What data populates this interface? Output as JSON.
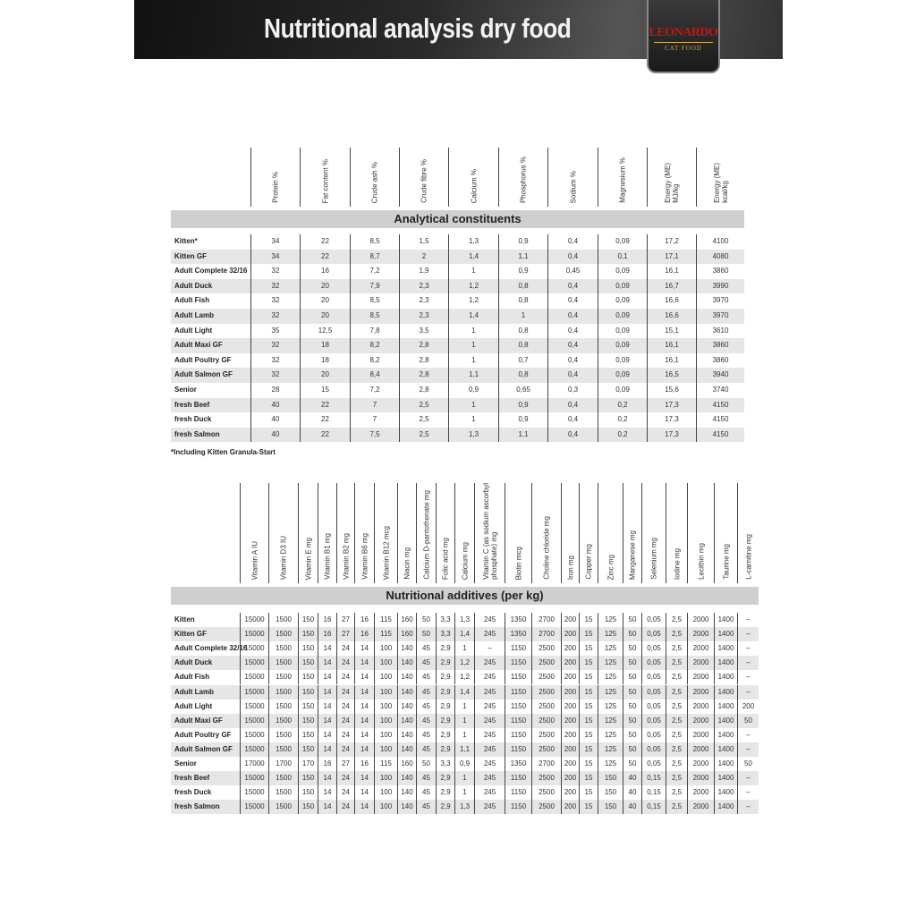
{
  "header": {
    "title": "Nutritional analysis dry food",
    "logo": {
      "brand": "LEONARDO",
      "sub": "CAT FOOD"
    }
  },
  "analytical": {
    "section_title": "Analytical constituents",
    "columns": [
      "Protein %",
      "Fat content %",
      "Crude ash %",
      "Crude fibre %",
      "Calcium %",
      "Phosphorus %",
      "Sodium %",
      "Magnesium %",
      "Energy (ME)\nMJ/kg",
      "Energy (ME)\nkcal/kg"
    ],
    "rows": [
      {
        "name": "Kitten*",
        "values": [
          "34",
          "22",
          "8,5",
          "1,5",
          "1,3",
          "0,9",
          "0,4",
          "0,09",
          "17,2",
          "4100"
        ]
      },
      {
        "name": "Kitten GF",
        "values": [
          "34",
          "22",
          "8,7",
          "2",
          "1,4",
          "1,1",
          "0,4",
          "0,1",
          "17,1",
          "4080"
        ]
      },
      {
        "name": "Adult Complete 32/16",
        "values": [
          "32",
          "16",
          "7,2",
          "1,9",
          "1",
          "0,9",
          "0,45",
          "0,09",
          "16,1",
          "3860"
        ]
      },
      {
        "name": "Adult Duck",
        "values": [
          "32",
          "20",
          "7,9",
          "2,3",
          "1,2",
          "0,8",
          "0,4",
          "0,09",
          "16,7",
          "3990"
        ]
      },
      {
        "name": "Adult Fish",
        "values": [
          "32",
          "20",
          "8,5",
          "2,3",
          "1,2",
          "0,8",
          "0,4",
          "0,09",
          "16,6",
          "3970"
        ]
      },
      {
        "name": "Adult Lamb",
        "values": [
          "32",
          "20",
          "8,5",
          "2,3",
          "1,4",
          "1",
          "0,4",
          "0,09",
          "16,6",
          "3970"
        ]
      },
      {
        "name": "Adult Light",
        "values": [
          "35",
          "12,5",
          "7,8",
          "3,5",
          "1",
          "0,8",
          "0,4",
          "0,09",
          "15,1",
          "3610"
        ]
      },
      {
        "name": "Adult Maxi GF",
        "values": [
          "32",
          "18",
          "8,2",
          "2,8",
          "1",
          "0,8",
          "0,4",
          "0,09",
          "16,1",
          "3860"
        ]
      },
      {
        "name": "Adult Poultry GF",
        "values": [
          "32",
          "18",
          "8,2",
          "2,8",
          "1",
          "0,7",
          "0,4",
          "0,09",
          "16,1",
          "3860"
        ]
      },
      {
        "name": "Adult Salmon GF",
        "values": [
          "32",
          "20",
          "8,4",
          "2,8",
          "1,1",
          "0,8",
          "0,4",
          "0,09",
          "16,5",
          "3940"
        ]
      },
      {
        "name": "Senior",
        "values": [
          "28",
          "15",
          "7,2",
          "2,8",
          "0,9",
          "0,65",
          "0,3",
          "0,09",
          "15,6",
          "3740"
        ]
      },
      {
        "name": "fresh Beef",
        "values": [
          "40",
          "22",
          "7",
          "2,5",
          "1",
          "0,9",
          "0,4",
          "0,2",
          "17,3",
          "4150"
        ]
      },
      {
        "name": "fresh Duck",
        "values": [
          "40",
          "22",
          "7",
          "2,5",
          "1",
          "0,9",
          "0,4",
          "0,2",
          "17,3",
          "4150"
        ]
      },
      {
        "name": "fresh Salmon",
        "values": [
          "40",
          "22",
          "7,5",
          "2,5",
          "1,3",
          "1,1",
          "0,4",
          "0,2",
          "17,3",
          "4150"
        ]
      }
    ],
    "footnote": "*Including Kitten Granula-Start"
  },
  "additives": {
    "section_title": "Nutritional additives (per kg)",
    "columns": [
      "Vitamin A IU",
      "Vitamin D3 IU",
      "Vitamin E mg",
      "Vitamin B1 mg",
      "Vitamin B2 mg",
      "Vitamin B6 mg",
      "Vitamin B12 mcg",
      "Niacin mg",
      "Calcium D-pantothenate mg",
      "Folic acid mg",
      "Calcium mg",
      "Vitamin C (as sodium ascorbyl\nphosphate) mg",
      "Biotin mcg",
      "Choline chloride mg",
      "Iron mg",
      "Copper mg",
      "Zinc mg",
      "Manganese mg",
      "Selenium mg",
      "Iodine mg",
      "Lecithin mg",
      "Taurine mg",
      "L-carnitine mg"
    ],
    "rows": [
      {
        "name": "Kitten",
        "values": [
          "15000",
          "1500",
          "150",
          "16",
          "27",
          "16",
          "115",
          "160",
          "50",
          "3,3",
          "1,3",
          "245",
          "1350",
          "2700",
          "200",
          "15",
          "125",
          "50",
          "0,05",
          "2,5",
          "2000",
          "1400",
          "–"
        ]
      },
      {
        "name": "Kitten GF",
        "values": [
          "15000",
          "1500",
          "150",
          "16",
          "27",
          "16",
          "115",
          "160",
          "50",
          "3,3",
          "1,4",
          "245",
          "1350",
          "2700",
          "200",
          "15",
          "125",
          "50",
          "0,05",
          "2,5",
          "2000",
          "1400",
          "–"
        ]
      },
      {
        "name": "Adult Complete 32/16",
        "values": [
          "15000",
          "1500",
          "150",
          "14",
          "24",
          "14",
          "100",
          "140",
          "45",
          "2,9",
          "1",
          "–",
          "1150",
          "2500",
          "200",
          "15",
          "125",
          "50",
          "0,05",
          "2,5",
          "2000",
          "1400",
          "–"
        ]
      },
      {
        "name": "Adult Duck",
        "values": [
          "15000",
          "1500",
          "150",
          "14",
          "24",
          "14",
          "100",
          "140",
          "45",
          "2,9",
          "1,2",
          "245",
          "1150",
          "2500",
          "200",
          "15",
          "125",
          "50",
          "0,05",
          "2,5",
          "2000",
          "1400",
          "–"
        ]
      },
      {
        "name": "Adult Fish",
        "values": [
          "15000",
          "1500",
          "150",
          "14",
          "24",
          "14",
          "100",
          "140",
          "45",
          "2,9",
          "1,2",
          "245",
          "1150",
          "2500",
          "200",
          "15",
          "125",
          "50",
          "0,05",
          "2,5",
          "2000",
          "1400",
          "–"
        ]
      },
      {
        "name": "Adult Lamb",
        "values": [
          "15000",
          "1500",
          "150",
          "14",
          "24",
          "14",
          "100",
          "140",
          "45",
          "2,9",
          "1,4",
          "245",
          "1150",
          "2500",
          "200",
          "15",
          "125",
          "50",
          "0,05",
          "2,5",
          "2000",
          "1400",
          "–"
        ]
      },
      {
        "name": "Adult Light",
        "values": [
          "15000",
          "1500",
          "150",
          "14",
          "24",
          "14",
          "100",
          "140",
          "45",
          "2,9",
          "1",
          "245",
          "1150",
          "2500",
          "200",
          "15",
          "125",
          "50",
          "0,05",
          "2,5",
          "2000",
          "1400",
          "200"
        ]
      },
      {
        "name": "Adult Maxi GF",
        "values": [
          "15000",
          "1500",
          "150",
          "14",
          "24",
          "14",
          "100",
          "140",
          "45",
          "2,9",
          "1",
          "245",
          "1150",
          "2500",
          "200",
          "15",
          "125",
          "50",
          "0,05",
          "2,5",
          "2000",
          "1400",
          "50"
        ]
      },
      {
        "name": "Adult Poultry GF",
        "values": [
          "15000",
          "1500",
          "150",
          "14",
          "24",
          "14",
          "100",
          "140",
          "45",
          "2,9",
          "1",
          "245",
          "1150",
          "2500",
          "200",
          "15",
          "125",
          "50",
          "0,05",
          "2,5",
          "2000",
          "1400",
          "–"
        ]
      },
      {
        "name": "Adult Salmon GF",
        "values": [
          "15000",
          "1500",
          "150",
          "14",
          "24",
          "14",
          "100",
          "140",
          "45",
          "2,9",
          "1,1",
          "245",
          "1150",
          "2500",
          "200",
          "15",
          "125",
          "50",
          "0,05",
          "2,5",
          "2000",
          "1400",
          "–"
        ]
      },
      {
        "name": "Senior",
        "values": [
          "17000",
          "1700",
          "170",
          "16",
          "27",
          "16",
          "115",
          "160",
          "50",
          "3,3",
          "0,9",
          "245",
          "1350",
          "2700",
          "200",
          "15",
          "125",
          "50",
          "0,05",
          "2,5",
          "2000",
          "1400",
          "50"
        ]
      },
      {
        "name": "fresh Beef",
        "values": [
          "15000",
          "1500",
          "150",
          "14",
          "24",
          "14",
          "100",
          "140",
          "45",
          "2,9",
          "1",
          "245",
          "1150",
          "2500",
          "200",
          "15",
          "150",
          "40",
          "0,15",
          "2,5",
          "2000",
          "1400",
          "–"
        ]
      },
      {
        "name": "fresh Duck",
        "values": [
          "15000",
          "1500",
          "150",
          "14",
          "24",
          "14",
          "100",
          "140",
          "45",
          "2,9",
          "1",
          "245",
          "1150",
          "2500",
          "200",
          "15",
          "150",
          "40",
          "0,15",
          "2,5",
          "2000",
          "1400",
          "–"
        ]
      },
      {
        "name": "fresh Salmon",
        "values": [
          "15000",
          "1500",
          "150",
          "14",
          "24",
          "14",
          "100",
          "140",
          "45",
          "2,9",
          "1,3",
          "245",
          "1150",
          "2500",
          "200",
          "15",
          "150",
          "40",
          "0,15",
          "2,5",
          "2000",
          "1400",
          "–"
        ]
      }
    ]
  }
}
